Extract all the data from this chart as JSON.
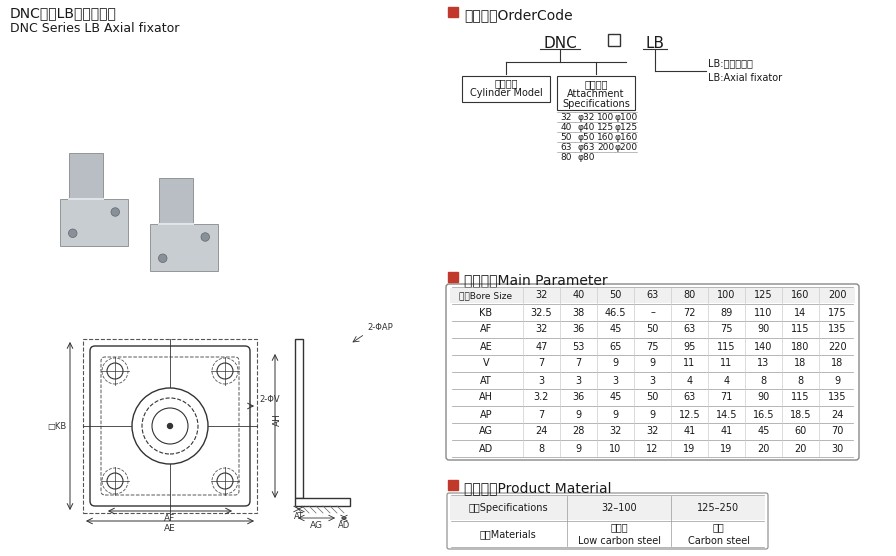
{
  "title_cn": "DNC系列LB轴向固定架",
  "title_en": "DNC Series LB Axial fixator",
  "section1_title": "订货型号OrderCode",
  "section2_title": "主要参数Main Parameter",
  "section3_title": "产品材质Product Material",
  "order_code": {
    "dnc_label_cn": "气缸型号",
    "dnc_label_en": "Cylinder Model",
    "attach_cn": "附件规格",
    "attach_en1": "Attachment",
    "attach_en2": "Specifications",
    "lb_label1": "LB:轴向固定架",
    "lb_label2": "LB:Axial fixator",
    "spec_table": [
      [
        "32",
        "φ32",
        "100",
        "φ100"
      ],
      [
        "40",
        "φ40",
        "125",
        "φ125"
      ],
      [
        "50",
        "φ50",
        "160",
        "φ160"
      ],
      [
        "63",
        "φ63",
        "200",
        "φ200"
      ],
      [
        "80",
        "φ80",
        "",
        ""
      ]
    ]
  },
  "param_table": {
    "header": [
      "缸径Bore Size",
      "32",
      "40",
      "50",
      "63",
      "80",
      "100",
      "125",
      "160",
      "200"
    ],
    "rows": [
      [
        "KB",
        "32.5",
        "38",
        "46.5",
        "–",
        "72",
        "89",
        "110",
        "14",
        "175"
      ],
      [
        "AF",
        "32",
        "36",
        "45",
        "50",
        "63",
        "75",
        "90",
        "115",
        "135"
      ],
      [
        "AE",
        "47",
        "53",
        "65",
        "75",
        "95",
        "115",
        "140",
        "180",
        "220"
      ],
      [
        "V",
        "7",
        "7",
        "9",
        "9",
        "11",
        "11",
        "13",
        "18",
        "18"
      ],
      [
        "AT",
        "3",
        "3",
        "3",
        "3",
        "4",
        "4",
        "8",
        "8",
        "9"
      ],
      [
        "AH",
        "3.2",
        "36",
        "45",
        "50",
        "63",
        "71",
        "90",
        "115",
        "135"
      ],
      [
        "AP",
        "7",
        "9",
        "9",
        "9",
        "12.5",
        "14.5",
        "16.5",
        "18.5",
        "24"
      ],
      [
        "AG",
        "24",
        "28",
        "32",
        "32",
        "41",
        "41",
        "45",
        "60",
        "70"
      ],
      [
        "AD",
        "8",
        "9",
        "10",
        "12",
        "19",
        "19",
        "20",
        "20",
        "30"
      ]
    ]
  },
  "material_table": {
    "header": [
      "规格Specifications",
      "32–100",
      "125–250"
    ],
    "rows": [
      [
        "材质Materials",
        "低碳钢\nLow carbon steel",
        "碳钢\nCarbon steel"
      ]
    ]
  },
  "accent_color": "#c0392b",
  "bg_color": "#ffffff",
  "text_color": "#1a1a1a",
  "line_color": "#333333",
  "grid_color": "#aaaaaa",
  "header_bg": "#f0f0f0"
}
